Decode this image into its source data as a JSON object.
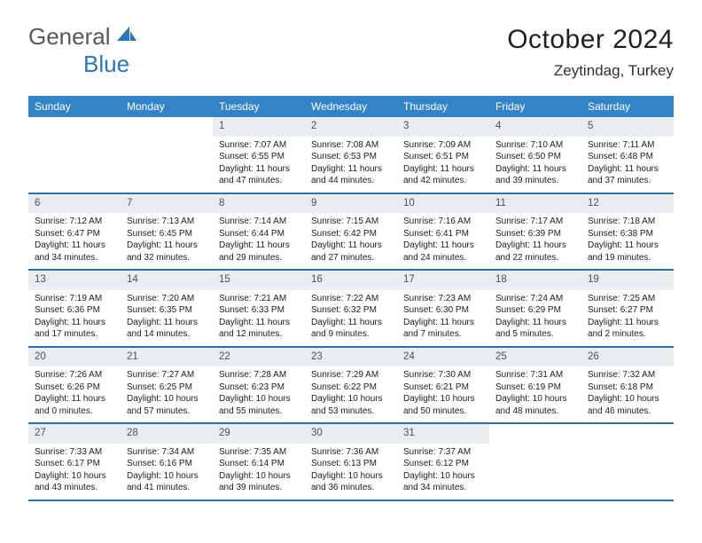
{
  "logo": {
    "word1": "General",
    "word2": "Blue"
  },
  "title": "October 2024",
  "location": "Zeytindag, Turkey",
  "colors": {
    "header_bg": "#3383c8",
    "row_border": "#2f6fa6",
    "daybar_bg": "#e9edf0",
    "logo_gray": "#585858",
    "logo_blue": "#2876bb"
  },
  "daysOfWeek": [
    "Sunday",
    "Monday",
    "Tuesday",
    "Wednesday",
    "Thursday",
    "Friday",
    "Saturday"
  ],
  "weeks": [
    [
      {
        "n": "",
        "sr": "",
        "ss": "",
        "dl": ""
      },
      {
        "n": "",
        "sr": "",
        "ss": "",
        "dl": ""
      },
      {
        "n": "1",
        "sr": "Sunrise: 7:07 AM",
        "ss": "Sunset: 6:55 PM",
        "dl": "Daylight: 11 hours and 47 minutes."
      },
      {
        "n": "2",
        "sr": "Sunrise: 7:08 AM",
        "ss": "Sunset: 6:53 PM",
        "dl": "Daylight: 11 hours and 44 minutes."
      },
      {
        "n": "3",
        "sr": "Sunrise: 7:09 AM",
        "ss": "Sunset: 6:51 PM",
        "dl": "Daylight: 11 hours and 42 minutes."
      },
      {
        "n": "4",
        "sr": "Sunrise: 7:10 AM",
        "ss": "Sunset: 6:50 PM",
        "dl": "Daylight: 11 hours and 39 minutes."
      },
      {
        "n": "5",
        "sr": "Sunrise: 7:11 AM",
        "ss": "Sunset: 6:48 PM",
        "dl": "Daylight: 11 hours and 37 minutes."
      }
    ],
    [
      {
        "n": "6",
        "sr": "Sunrise: 7:12 AM",
        "ss": "Sunset: 6:47 PM",
        "dl": "Daylight: 11 hours and 34 minutes."
      },
      {
        "n": "7",
        "sr": "Sunrise: 7:13 AM",
        "ss": "Sunset: 6:45 PM",
        "dl": "Daylight: 11 hours and 32 minutes."
      },
      {
        "n": "8",
        "sr": "Sunrise: 7:14 AM",
        "ss": "Sunset: 6:44 PM",
        "dl": "Daylight: 11 hours and 29 minutes."
      },
      {
        "n": "9",
        "sr": "Sunrise: 7:15 AM",
        "ss": "Sunset: 6:42 PM",
        "dl": "Daylight: 11 hours and 27 minutes."
      },
      {
        "n": "10",
        "sr": "Sunrise: 7:16 AM",
        "ss": "Sunset: 6:41 PM",
        "dl": "Daylight: 11 hours and 24 minutes."
      },
      {
        "n": "11",
        "sr": "Sunrise: 7:17 AM",
        "ss": "Sunset: 6:39 PM",
        "dl": "Daylight: 11 hours and 22 minutes."
      },
      {
        "n": "12",
        "sr": "Sunrise: 7:18 AM",
        "ss": "Sunset: 6:38 PM",
        "dl": "Daylight: 11 hours and 19 minutes."
      }
    ],
    [
      {
        "n": "13",
        "sr": "Sunrise: 7:19 AM",
        "ss": "Sunset: 6:36 PM",
        "dl": "Daylight: 11 hours and 17 minutes."
      },
      {
        "n": "14",
        "sr": "Sunrise: 7:20 AM",
        "ss": "Sunset: 6:35 PM",
        "dl": "Daylight: 11 hours and 14 minutes."
      },
      {
        "n": "15",
        "sr": "Sunrise: 7:21 AM",
        "ss": "Sunset: 6:33 PM",
        "dl": "Daylight: 11 hours and 12 minutes."
      },
      {
        "n": "16",
        "sr": "Sunrise: 7:22 AM",
        "ss": "Sunset: 6:32 PM",
        "dl": "Daylight: 11 hours and 9 minutes."
      },
      {
        "n": "17",
        "sr": "Sunrise: 7:23 AM",
        "ss": "Sunset: 6:30 PM",
        "dl": "Daylight: 11 hours and 7 minutes."
      },
      {
        "n": "18",
        "sr": "Sunrise: 7:24 AM",
        "ss": "Sunset: 6:29 PM",
        "dl": "Daylight: 11 hours and 5 minutes."
      },
      {
        "n": "19",
        "sr": "Sunrise: 7:25 AM",
        "ss": "Sunset: 6:27 PM",
        "dl": "Daylight: 11 hours and 2 minutes."
      }
    ],
    [
      {
        "n": "20",
        "sr": "Sunrise: 7:26 AM",
        "ss": "Sunset: 6:26 PM",
        "dl": "Daylight: 11 hours and 0 minutes."
      },
      {
        "n": "21",
        "sr": "Sunrise: 7:27 AM",
        "ss": "Sunset: 6:25 PM",
        "dl": "Daylight: 10 hours and 57 minutes."
      },
      {
        "n": "22",
        "sr": "Sunrise: 7:28 AM",
        "ss": "Sunset: 6:23 PM",
        "dl": "Daylight: 10 hours and 55 minutes."
      },
      {
        "n": "23",
        "sr": "Sunrise: 7:29 AM",
        "ss": "Sunset: 6:22 PM",
        "dl": "Daylight: 10 hours and 53 minutes."
      },
      {
        "n": "24",
        "sr": "Sunrise: 7:30 AM",
        "ss": "Sunset: 6:21 PM",
        "dl": "Daylight: 10 hours and 50 minutes."
      },
      {
        "n": "25",
        "sr": "Sunrise: 7:31 AM",
        "ss": "Sunset: 6:19 PM",
        "dl": "Daylight: 10 hours and 48 minutes."
      },
      {
        "n": "26",
        "sr": "Sunrise: 7:32 AM",
        "ss": "Sunset: 6:18 PM",
        "dl": "Daylight: 10 hours and 46 minutes."
      }
    ],
    [
      {
        "n": "27",
        "sr": "Sunrise: 7:33 AM",
        "ss": "Sunset: 6:17 PM",
        "dl": "Daylight: 10 hours and 43 minutes."
      },
      {
        "n": "28",
        "sr": "Sunrise: 7:34 AM",
        "ss": "Sunset: 6:16 PM",
        "dl": "Daylight: 10 hours and 41 minutes."
      },
      {
        "n": "29",
        "sr": "Sunrise: 7:35 AM",
        "ss": "Sunset: 6:14 PM",
        "dl": "Daylight: 10 hours and 39 minutes."
      },
      {
        "n": "30",
        "sr": "Sunrise: 7:36 AM",
        "ss": "Sunset: 6:13 PM",
        "dl": "Daylight: 10 hours and 36 minutes."
      },
      {
        "n": "31",
        "sr": "Sunrise: 7:37 AM",
        "ss": "Sunset: 6:12 PM",
        "dl": "Daylight: 10 hours and 34 minutes."
      },
      {
        "n": "",
        "sr": "",
        "ss": "",
        "dl": ""
      },
      {
        "n": "",
        "sr": "",
        "ss": "",
        "dl": ""
      }
    ]
  ]
}
